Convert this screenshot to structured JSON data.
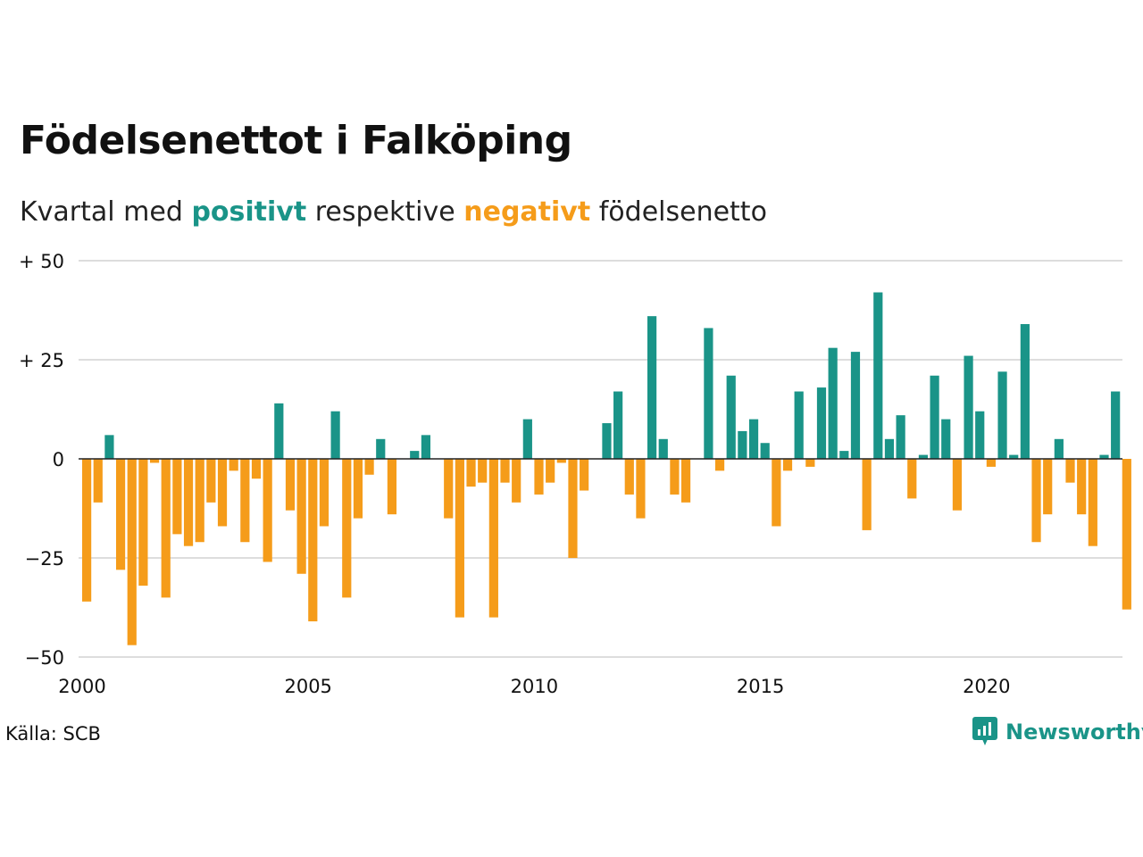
{
  "title": "Födelsenettot i Falköping",
  "subtitle": {
    "prefix": "Kvartal med",
    "positive_word": "positivt",
    "middle": "respektive",
    "negative_word": "negativt",
    "suffix": "födelsenetto"
  },
  "colors": {
    "positive": "#1a9488",
    "negative": "#f59c1a",
    "grid": "#dddddd",
    "zero_line": "#222222"
  },
  "source": "Källa: SCB",
  "brand": "Newsworthy",
  "chart_data": {
    "type": "bar",
    "title": "Födelsenettot i Falköping",
    "xlabel": "",
    "ylabel": "",
    "ylim": [
      -50,
      50
    ],
    "yticks": [
      {
        "value": 50,
        "label": "+ 50"
      },
      {
        "value": 25,
        "label": "+ 25"
      },
      {
        "value": 0,
        "label": "0"
      },
      {
        "value": -25,
        "label": "−25"
      },
      {
        "value": -50,
        "label": "−50"
      }
    ],
    "xticks": [
      {
        "value": 2000,
        "label": "2000"
      },
      {
        "value": 2005,
        "label": "2005"
      },
      {
        "value": 2010,
        "label": "2010"
      },
      {
        "value": 2015,
        "label": "2015"
      },
      {
        "value": 2020,
        "label": "2020"
      }
    ],
    "x_start": "2000 Q1",
    "x_step": "quarter",
    "grid": true,
    "values": [
      -36,
      -11,
      6,
      -28,
      -47,
      -32,
      -1,
      -35,
      -19,
      -22,
      -21,
      -11,
      -17,
      -3,
      -21,
      -5,
      -26,
      14,
      -13,
      -29,
      -41,
      -17,
      12,
      -35,
      -15,
      -4,
      5,
      -14,
      0,
      2,
      6,
      0,
      -15,
      -40,
      -7,
      -6,
      -40,
      -6,
      -11,
      10,
      -9,
      -6,
      -1,
      -25,
      -8,
      0,
      9,
      17,
      -9,
      -15,
      36,
      5,
      -9,
      -11,
      0,
      33,
      -3,
      21,
      7,
      10,
      4,
      -17,
      -3,
      17,
      -2,
      18,
      28,
      2,
      27,
      -18,
      42,
      5,
      11,
      -10,
      1,
      21,
      10,
      -13,
      26,
      12,
      -2,
      22,
      1,
      34,
      -21,
      -14,
      5,
      -6,
      -14,
      -22,
      1,
      17,
      -38
    ]
  }
}
